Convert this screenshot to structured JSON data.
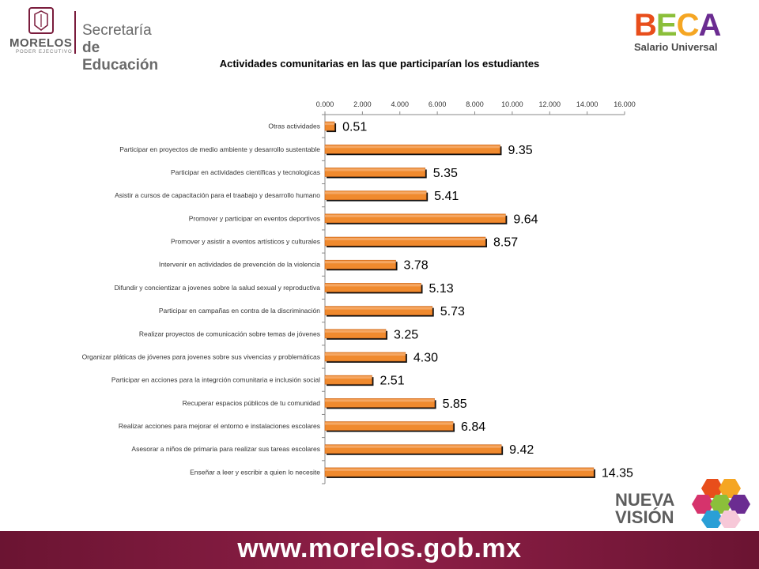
{
  "header": {
    "left_logo": {
      "org": "MORELOS",
      "org_sub": "PODER EJECUTIVO",
      "line1": "Secretaría",
      "line2": "de Educación"
    },
    "right_logo": {
      "brand": "BECA",
      "sub": "Salario Universal"
    }
  },
  "footer": {
    "logo_line1": "NUEVA",
    "logo_line2": "VISIÓN",
    "url": "www.morelos.gob.mx"
  },
  "colors": {
    "bar": "#f08a2e",
    "bar_dark": "#c8631a",
    "bar_shadow": "#111111",
    "footer": "#7a1c3c"
  },
  "chart_data": {
    "type": "bar",
    "orientation": "horizontal",
    "title": "Actividades comunitarias en las que participarían los estudiantes",
    "xlim": [
      0,
      16
    ],
    "x_ticks": [
      "0.000",
      "2.000",
      "4.000",
      "6.000",
      "8.000",
      "10.000",
      "12.000",
      "14.000",
      "16.000"
    ],
    "categories": [
      "Otras actividades",
      "Participar en proyectos de medio ambiente y desarrollo sustentable",
      "Participar en actividades científicas y tecnologicas",
      "Asistir a cursos de capacitación para el traabajo y desarrollo humano",
      "Promover y participar en eventos deportivos",
      "Promover y asistir a eventos artísticos y culturales",
      "Intervenir en actividades de prevención de la violencia",
      "Difundir y concientizar a jovenes sobre la salud sexual y reproductiva",
      "Participar en campañas en contra de la discriminación",
      "Realizar proyectos de comunicación sobre temas de jóvenes",
      "Organizar pláticas de jóvenes para jovenes sobre sus vivencias y problemáticas",
      "Participar en acciones para la integrción comunitaria e inclusión social",
      "Recuperar espacios públicos de tu comunidad",
      "Realizar acciones para mejorar el entorno e instalaciones escolares",
      "Asesorar a niños de primaria para realizar sus tareas escolares",
      "Enseñar a leer y escribir a quien lo necesite"
    ],
    "values": [
      0.51,
      9.35,
      5.35,
      5.41,
      9.64,
      8.57,
      3.78,
      5.13,
      5.73,
      3.25,
      4.3,
      2.51,
      5.85,
      6.84,
      9.42,
      14.35
    ],
    "data_labels": [
      "0.51",
      "9.35",
      "5.35",
      "5.41",
      "9.64",
      "8.57",
      "3.78",
      "5.13",
      "5.73",
      "3.25",
      "4.30",
      "2.51",
      "5.85",
      "6.84",
      "9.42",
      "14.35"
    ],
    "grid": false,
    "legend": "none"
  }
}
